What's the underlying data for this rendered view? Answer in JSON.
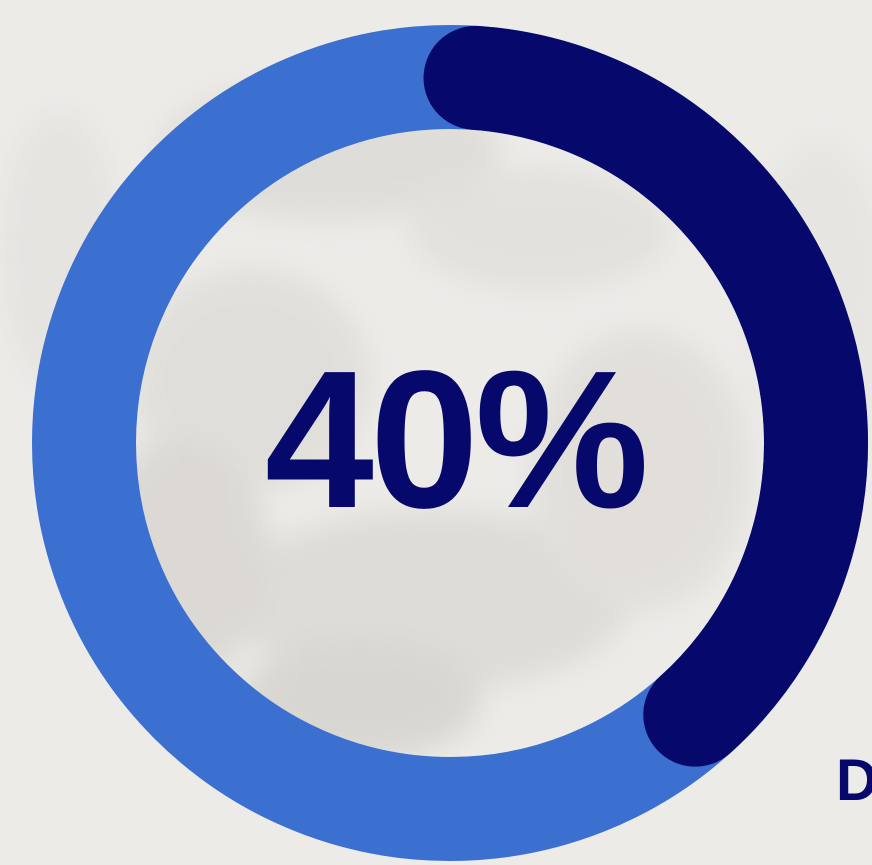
{
  "chart_data": {
    "type": "pie",
    "style": "donut",
    "value_percent": 40,
    "center_label": "40%",
    "segments": [
      {
        "value": 40,
        "color": "#06086c"
      },
      {
        "value": 60,
        "color": "#3b6fd0"
      }
    ]
  },
  "caption": {
    "text": "D",
    "color": "#06086c"
  },
  "colors": {
    "accent_dark": "#06086c",
    "accent_light": "#3b6fd0",
    "background": "#ecebe8"
  },
  "background_image": {
    "description_icon": "blurred-photo-background"
  }
}
